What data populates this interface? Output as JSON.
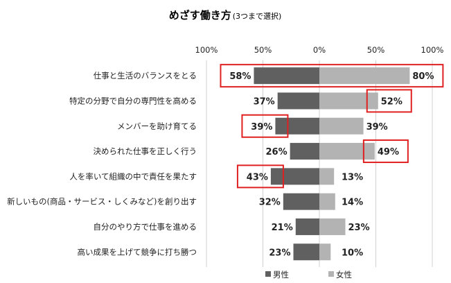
{
  "chart_data": {
    "type": "bar",
    "title": "めざす働き方",
    "subtitle": "(3つまで選択)",
    "xlim": [
      -100,
      100
    ],
    "ticks": [
      "100%",
      "50%",
      "0%",
      "50%",
      "100%"
    ],
    "categories": [
      "仕事と生活のバランスをとる",
      "特定の分野で自分の専門性を高める",
      "メンバーを助け育てる",
      "決められた仕事を正しく行う",
      "人を率いて組織の中で責任を果たす",
      "新しいもの(商品・サービス・しくみなど)を創り出す",
      "自分のやり方で仕事を進める",
      "高い成果を上げて競争に打ち勝つ"
    ],
    "series": [
      {
        "name": "男性",
        "values": [
          58,
          37,
          39,
          26,
          43,
          32,
          21,
          23
        ],
        "value_labels": [
          "58%",
          "37%",
          "39%",
          "26%",
          "43%",
          "32%",
          "21%",
          "23%"
        ],
        "color": "#606060"
      },
      {
        "name": "女性",
        "values": [
          80,
          52,
          39,
          49,
          13,
          14,
          23,
          10
        ],
        "value_labels": [
          "80%",
          "52%",
          "39%",
          "49%",
          "13%",
          "14%",
          "23%",
          "10%"
        ],
        "color": "#b3b3b3"
      }
    ],
    "highlight_color": "#e02020",
    "highlights": [
      {
        "row": 0,
        "side": "both"
      },
      {
        "row": 1,
        "side": "female"
      },
      {
        "row": 2,
        "side": "male"
      },
      {
        "row": 3,
        "side": "female"
      },
      {
        "row": 4,
        "side": "male"
      }
    ],
    "grid": true,
    "legend_position": "bottom"
  }
}
